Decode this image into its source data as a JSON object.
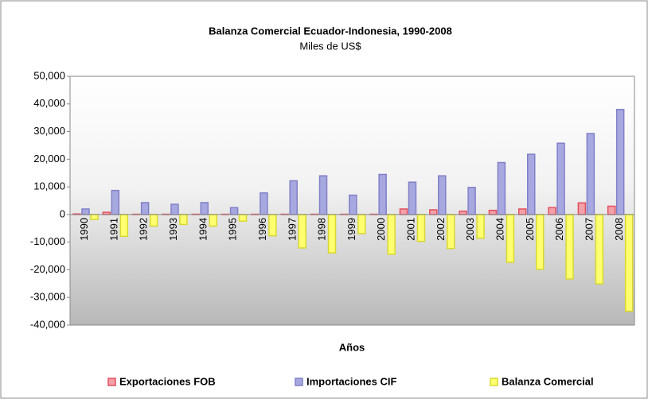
{
  "chart_data": {
    "type": "bar",
    "title": "Balanza Comercial Ecuador-Indonesia, 1990-2008",
    "subtitle": "Miles de US$",
    "x_label": "Años",
    "categories": [
      "1990",
      "1991",
      "1992",
      "1993",
      "1994",
      "1995",
      "1996",
      "1997",
      "1998",
      "1999",
      "2000",
      "2001",
      "2002",
      "2003",
      "2004",
      "2005",
      "2006",
      "2007",
      "2008"
    ],
    "series": [
      {
        "name": "Exportaciones FOB",
        "color": "#f4a0a8",
        "border": "#e05060",
        "values": [
          200,
          800,
          100,
          100,
          100,
          100,
          100,
          100,
          100,
          100,
          100,
          2000,
          1700,
          1200,
          1500,
          2000,
          2500,
          4200,
          3000
        ]
      },
      {
        "name": "Importaciones CIF",
        "color": "#a8a8e0",
        "border": "#8080c8",
        "values": [
          2000,
          8700,
          4300,
          3700,
          4300,
          2500,
          7800,
          12200,
          14000,
          7000,
          14500,
          11700,
          14000,
          9800,
          18800,
          21800,
          25800,
          29300,
          38000
        ]
      },
      {
        "name": "Balanza Comercial",
        "color": "#ffff70",
        "border": "#d8d830",
        "values": [
          -1800,
          -7900,
          -4200,
          -3600,
          -4200,
          -2400,
          -7700,
          -12100,
          -13900,
          -6900,
          -14400,
          -9700,
          -12300,
          -8600,
          -17300,
          -19800,
          -23300,
          -25100,
          -35000
        ]
      }
    ],
    "ylim": [
      -40000,
      50000
    ],
    "yticks": [
      {
        "value": -40000,
        "label": "-40,000"
      },
      {
        "value": -30000,
        "label": "-30,000"
      },
      {
        "value": -20000,
        "label": "-20,000"
      },
      {
        "value": -10000,
        "label": "-10,000"
      },
      0,
      {
        "value": 10000,
        "label": "10,000"
      },
      {
        "value": 20000,
        "label": "20,000"
      },
      {
        "value": 30000,
        "label": "30,000"
      },
      {
        "value": 40000,
        "label": "40,000"
      },
      {
        "value": 50000,
        "label": "50,000"
      }
    ],
    "legend": "bottom"
  }
}
